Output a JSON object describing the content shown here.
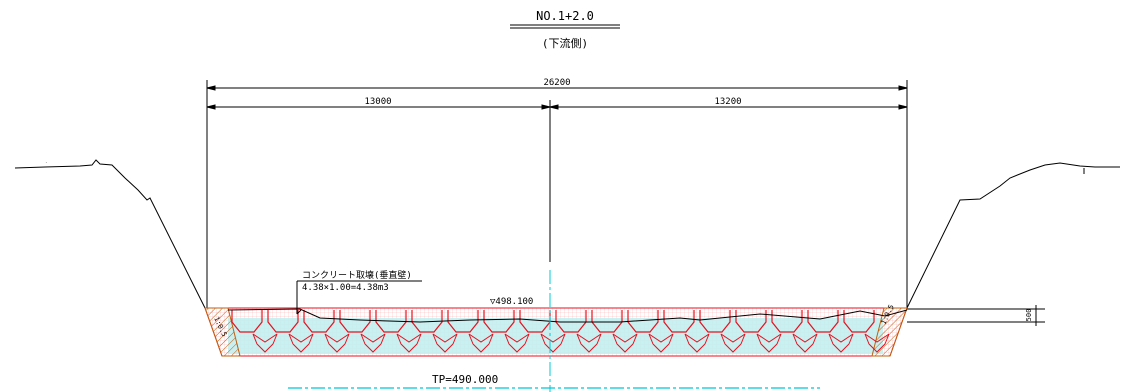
{
  "title": {
    "station": "NO.1+2.0",
    "side": "(下流側)"
  },
  "dimensions": {
    "total": "26200",
    "left": "13000",
    "right": "13200",
    "height": "500"
  },
  "labels": {
    "concrete_title": "コンクリート取壊(垂直壁)",
    "concrete_calc": "4.38×1.00=4.38m3",
    "water_level": "▽498.100",
    "tp_level": "TP=490.000",
    "slope_left": "1:0.5",
    "slope_right": "1:0.5"
  },
  "colors": {
    "outline": "#000000",
    "blocks": "#e8101e",
    "water": "#bfeef0",
    "centerline": "#00c8d8",
    "hatch": "#c06010"
  }
}
